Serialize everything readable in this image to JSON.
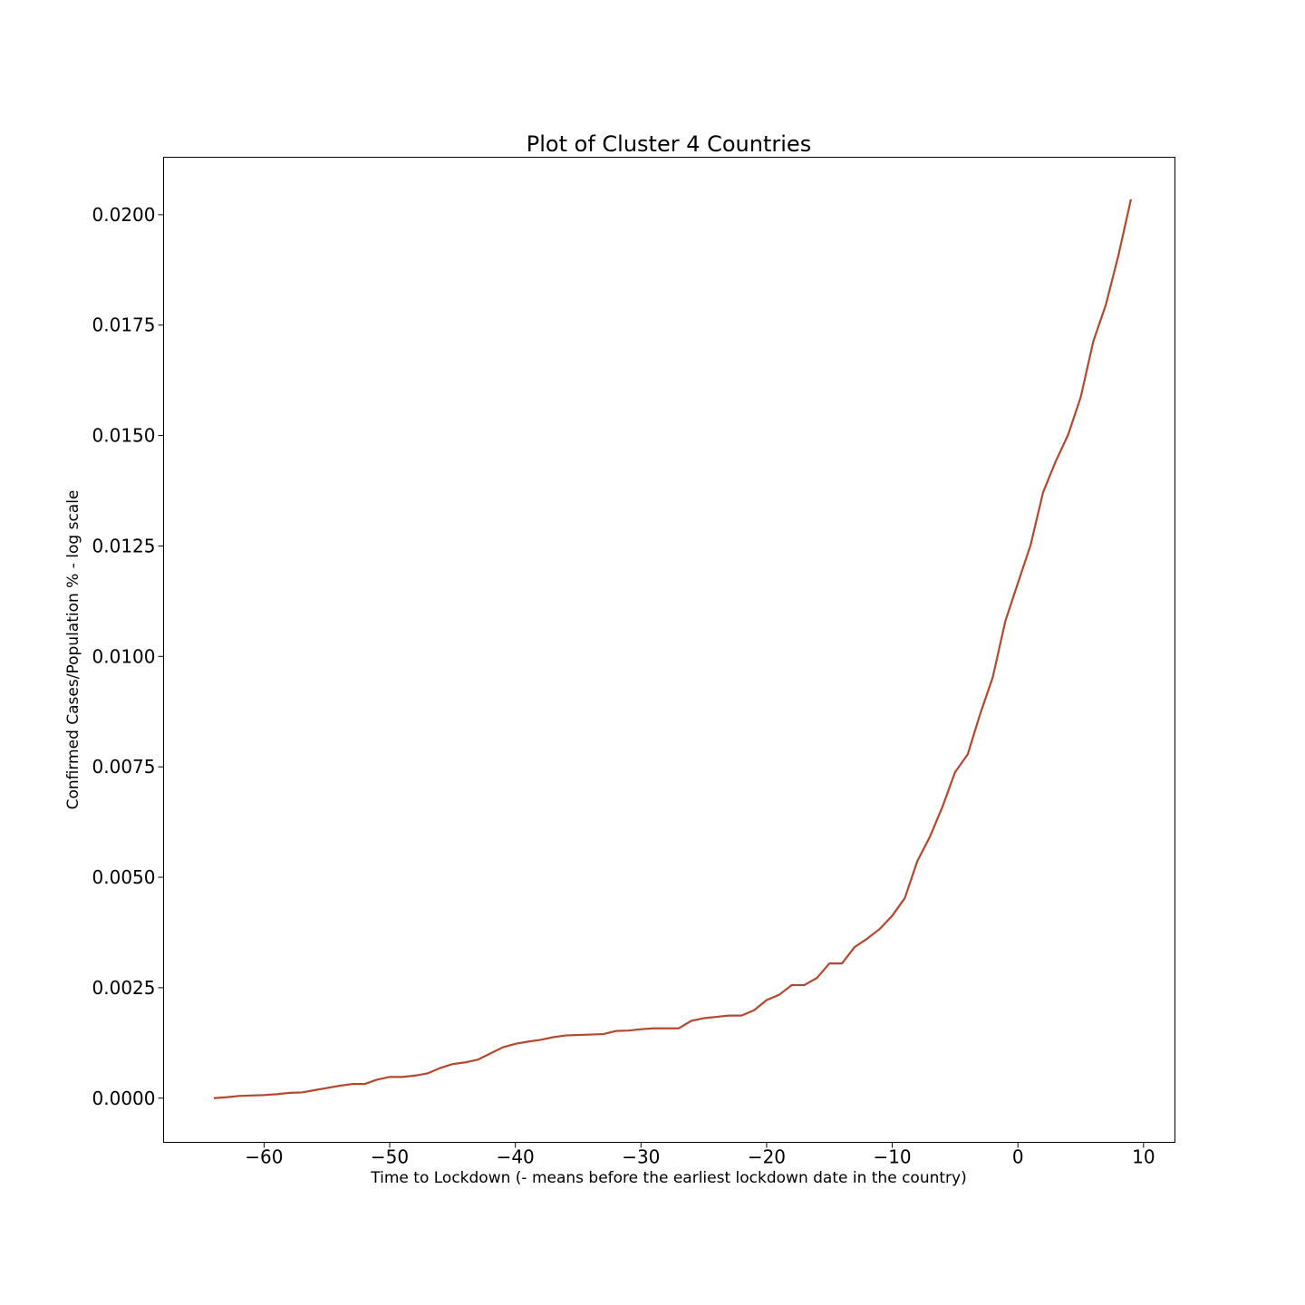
{
  "chart_data": {
    "type": "line",
    "title": "Plot of Cluster 4 Countries",
    "xlabel": "Time to Lockdown (- means before the earliest lockdown date in the country)",
    "ylabel": "Confirmed Cases/Population % - log scale",
    "xlim": [
      -68,
      12.5
    ],
    "ylim": [
      -0.001,
      0.0213
    ],
    "xticks": [
      -60,
      -50,
      -40,
      -30,
      -20,
      -10,
      0,
      10
    ],
    "xtick_labels": [
      "−60",
      "−50",
      "−40",
      "−30",
      "−20",
      "−10",
      "0",
      "10"
    ],
    "yticks": [
      0,
      0.0025,
      0.005,
      0.0075,
      0.01,
      0.0125,
      0.015,
      0.0175,
      0.02
    ],
    "ytick_labels": [
      "0.0000",
      "0.0025",
      "0.0050",
      "0.0075",
      "0.0100",
      "0.0125",
      "0.0150",
      "0.0175",
      "0.0200"
    ],
    "grid": false,
    "line_color": "#b5472c",
    "series": [
      {
        "x": [
          -64,
          -63,
          -62,
          -61,
          -60,
          -59,
          -58,
          -57,
          -56,
          -55,
          -54,
          -53,
          -52,
          -51,
          -50,
          -49,
          -48,
          -47,
          -46,
          -45,
          -44,
          -43,
          -42,
          -41,
          -40,
          -39,
          -38,
          -37,
          -36,
          -35,
          -34,
          -33,
          -32,
          -31,
          -30,
          -29,
          -28,
          -27,
          -26,
          -25,
          -24,
          -23,
          -22,
          -21,
          -20,
          -19,
          -18,
          -17,
          -16,
          -15,
          -14,
          -13,
          -12,
          -11,
          -10,
          -9,
          -8,
          -7,
          -6,
          -5,
          -4,
          -3,
          -2,
          -1,
          0,
          1,
          2,
          3,
          4,
          5,
          6,
          7,
          8,
          9
        ],
        "y": [
          0.0,
          2e-05,
          5e-05,
          6e-05,
          7e-05,
          9e-05,
          0.00012,
          0.00013,
          0.00018,
          0.00023,
          0.00028,
          0.00032,
          0.00032,
          0.00042,
          0.00048,
          0.00048,
          0.00051,
          0.00056,
          0.00068,
          0.00077,
          0.00081,
          0.00087,
          0.00101,
          0.00115,
          0.00123,
          0.00128,
          0.00132,
          0.00138,
          0.00142,
          0.00143,
          0.00144,
          0.00145,
          0.00152,
          0.00153,
          0.00156,
          0.00158,
          0.00158,
          0.00158,
          0.00175,
          0.00181,
          0.00184,
          0.00187,
          0.00187,
          0.00199,
          0.00222,
          0.00234,
          0.00256,
          0.00256,
          0.00272,
          0.00305,
          0.00305,
          0.00342,
          0.00361,
          0.00383,
          0.00413,
          0.00453,
          0.00537,
          0.00592,
          0.0066,
          0.00738,
          0.00778,
          0.0087,
          0.00953,
          0.0108,
          0.01166,
          0.01251,
          0.01371,
          0.01441,
          0.01502,
          0.01587,
          0.01713,
          0.01796,
          0.01908,
          0.02035
        ]
      }
    ]
  }
}
